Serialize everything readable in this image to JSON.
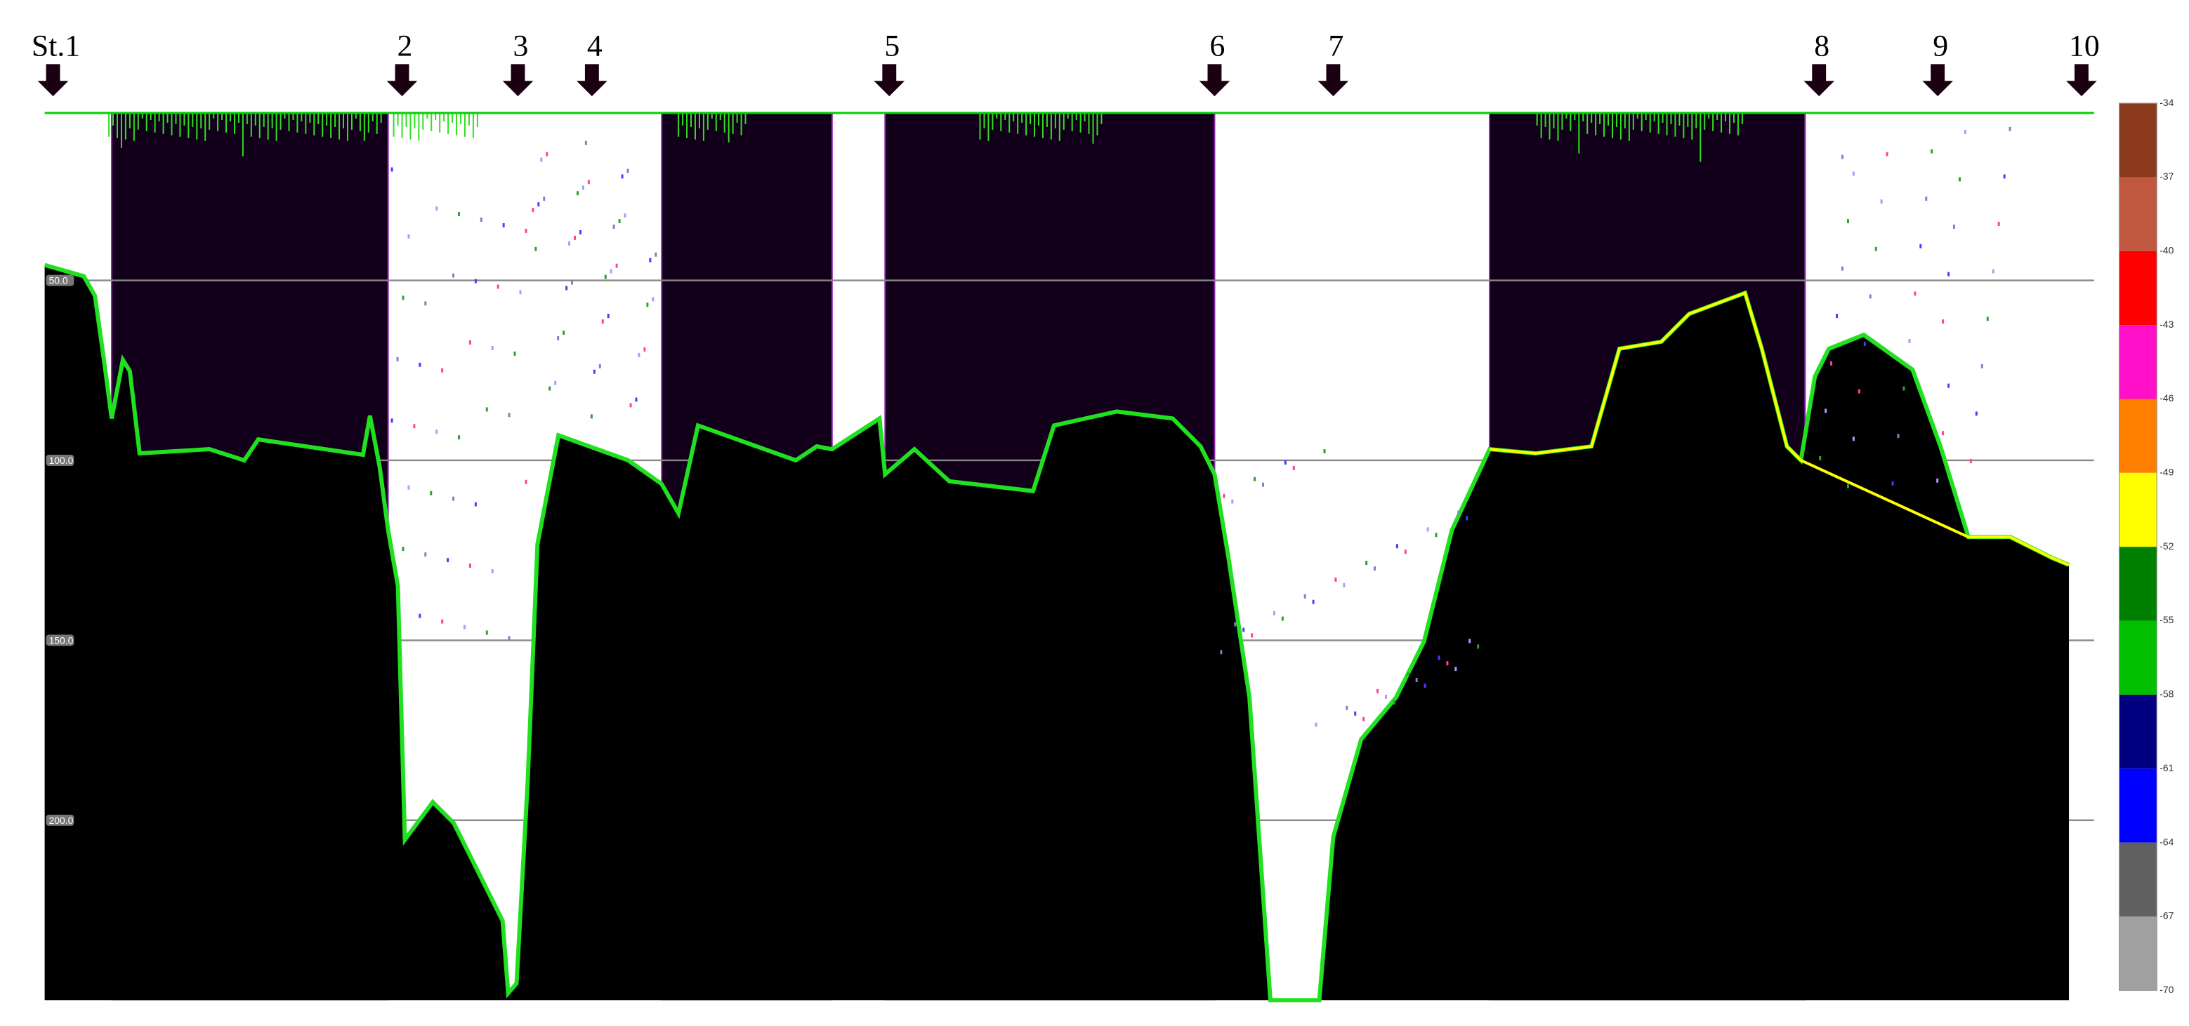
{
  "stations": [
    "St.1",
    "2",
    "3",
    "4",
    "5",
    "6",
    "7",
    "8",
    "9",
    "10"
  ],
  "depth_labels": [
    "50.0",
    "100.0",
    "150.0",
    "200.0"
  ],
  "colorbar": {
    "labels": [
      "-34",
      "-37",
      "-40",
      "-43",
      "-46",
      "-49",
      "-52",
      "-55",
      "-58",
      "-61",
      "-64",
      "-67",
      "-70"
    ],
    "colors": [
      "#8b3a1e",
      "#c0583f",
      "#ff0000",
      "#ff10c8",
      "#ff8000",
      "#ffff00",
      "#008000",
      "#00c000",
      "#000080",
      "#0000ff",
      "#606060",
      "#a0a0a0"
    ]
  }
}
